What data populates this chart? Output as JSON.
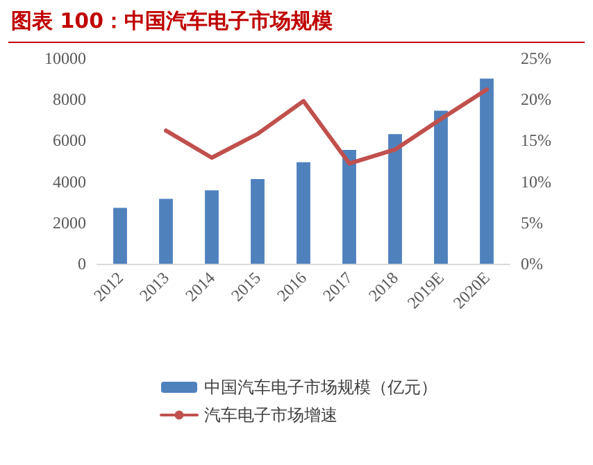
{
  "chart_data": {
    "type": "bar",
    "title": "图表 100：中国汽车电子市场规模",
    "categories": [
      "2012",
      "2013",
      "2014",
      "2015",
      "2016",
      "2017",
      "2018",
      "2019E",
      "2020E"
    ],
    "series": [
      {
        "name": "中国汽车电子市场规模（亿元）",
        "color": "#4f81bd",
        "values": [
          2720,
          3160,
          3570,
          4120,
          4940,
          5540,
          6310,
          7450,
          9010
        ]
      },
      {
        "name": "汽车电子市场增速",
        "type": "line",
        "axis": "y2",
        "color": "#c0504d",
        "values": [
          null,
          16.2,
          12.9,
          15.8,
          19.8,
          12.2,
          13.9,
          17.6,
          21.2
        ]
      }
    ],
    "ylim": [
      0,
      10000
    ],
    "yticks": [
      0,
      2000,
      4000,
      6000,
      8000,
      10000
    ],
    "y2lim": [
      0,
      25
    ],
    "y2ticks": [
      {
        "value": 0,
        "label": "0%"
      },
      {
        "value": 5,
        "label": "5%"
      },
      {
        "value": 10,
        "label": "10%"
      },
      {
        "value": 15,
        "label": "15%"
      },
      {
        "value": 20,
        "label": "20%"
      },
      {
        "value": 25,
        "label": "25%"
      }
    ],
    "grid": false,
    "legend": "bottom",
    "marker": "none",
    "line_style": "solid"
  }
}
